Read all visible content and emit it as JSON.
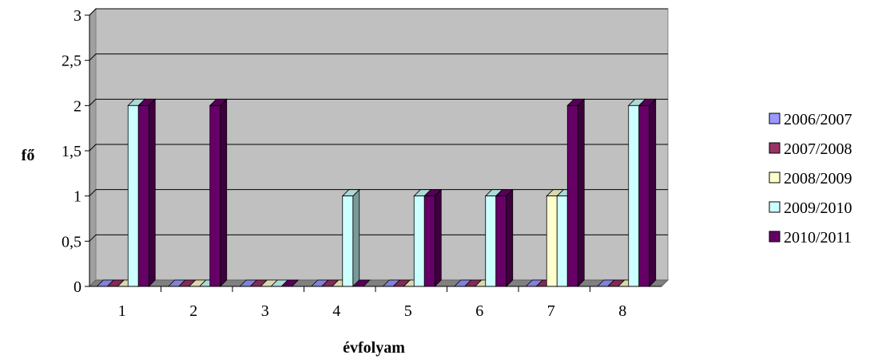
{
  "chart_data": {
    "type": "bar",
    "title": "",
    "xlabel": "évfolyam",
    "ylabel": "fő",
    "ylim": [
      0,
      3
    ],
    "yticks": [
      "0",
      "0,5",
      "1",
      "1,5",
      "2",
      "2,5",
      "3"
    ],
    "yticks_values": [
      0,
      0.5,
      1,
      1.5,
      2,
      2.5,
      3
    ],
    "categories": [
      "1",
      "2",
      "3",
      "4",
      "5",
      "6",
      "7",
      "8"
    ],
    "grid": true,
    "legend_position": "right",
    "style": "3d-clustered-column",
    "wall_color": "#c0c0c0",
    "series": [
      {
        "name": "2006/2007",
        "color": "#9999ff",
        "values": [
          0,
          0,
          0,
          0,
          0,
          0,
          0,
          0
        ]
      },
      {
        "name": "2007/2008",
        "color": "#993366",
        "values": [
          0,
          0,
          0,
          0,
          0,
          0,
          0,
          0
        ]
      },
      {
        "name": "2008/2009",
        "color": "#ffffcc",
        "values": [
          0,
          0,
          0,
          0,
          0,
          0,
          1,
          0
        ]
      },
      {
        "name": "2009/2010",
        "color": "#ccffff",
        "values": [
          2,
          0,
          0,
          1,
          1,
          1,
          1,
          2
        ]
      },
      {
        "name": "2010/2011",
        "color": "#660066",
        "values": [
          2,
          2,
          0,
          0,
          1,
          1,
          2,
          2
        ]
      }
    ]
  }
}
